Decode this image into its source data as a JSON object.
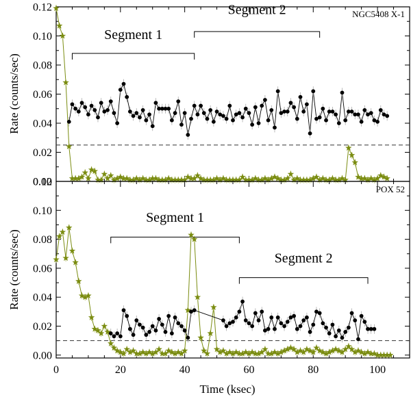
{
  "colors": {
    "background": "#ffffff",
    "axis": "#000000",
    "source": "#000000",
    "background_lc": "#7a8c10",
    "threshold": "#333333"
  },
  "chart_data": [
    {
      "type": "scatter",
      "panel_label": "NGC5408 X-1",
      "ylabel": "Rate (counts/sec)",
      "xlim": [
        0,
        110
      ],
      "ylim": [
        0,
        0.12
      ],
      "yticks": [
        0.0,
        0.02,
        0.04,
        0.06,
        0.08,
        0.1,
        0.12
      ],
      "ytick_labels": [
        "0.00",
        "0.02",
        "0.04",
        "0.06",
        "0.08",
        "0.10",
        "0.12"
      ],
      "threshold": 0.025,
      "segments": [
        {
          "label": "Segment 1",
          "x": [
            5,
            43
          ],
          "y_bracket": 0.088,
          "y_label": 0.098
        },
        {
          "label": "Segment 2",
          "x": [
            43,
            82
          ],
          "y_bracket": 0.103,
          "y_label": 0.115
        }
      ],
      "series": [
        {
          "name": "source",
          "x": [
            4,
            5,
            6,
            7,
            8,
            9,
            10,
            11,
            12,
            13,
            14,
            15,
            16,
            17,
            18,
            19,
            20,
            21,
            22,
            23,
            24,
            25,
            26,
            27,
            28,
            29,
            30,
            31,
            32,
            33,
            34,
            35,
            36,
            37,
            38,
            39,
            40,
            41,
            42,
            43,
            44,
            45,
            46,
            47,
            48,
            49,
            50,
            51,
            52,
            53,
            54,
            55,
            56,
            57,
            58,
            59,
            60,
            61,
            62,
            63,
            64,
            65,
            66,
            67,
            68,
            69,
            70,
            71,
            72,
            73,
            74,
            75,
            76,
            77,
            78,
            79,
            80,
            81,
            82,
            83,
            84,
            85,
            86,
            87,
            88,
            89,
            90,
            91,
            92,
            93,
            94,
            95,
            96,
            97,
            98,
            99,
            100,
            101,
            102,
            103
          ],
          "y": [
            0.041,
            0.053,
            0.05,
            0.048,
            0.054,
            0.051,
            0.046,
            0.052,
            0.049,
            0.044,
            0.054,
            0.048,
            0.049,
            0.055,
            0.047,
            0.04,
            0.063,
            0.067,
            0.058,
            0.048,
            0.045,
            0.047,
            0.044,
            0.049,
            0.042,
            0.046,
            0.038,
            0.054,
            0.05,
            0.05,
            0.05,
            0.05,
            0.042,
            0.047,
            0.055,
            0.039,
            0.047,
            0.032,
            0.043,
            0.052,
            0.046,
            0.052,
            0.047,
            0.043,
            0.049,
            0.041,
            0.048,
            0.046,
            0.045,
            0.043,
            0.052,
            0.042,
            0.046,
            0.047,
            0.044,
            0.05,
            0.047,
            0.039,
            0.051,
            0.04,
            0.052,
            0.056,
            0.042,
            0.049,
            0.037,
            0.062,
            0.047,
            0.048,
            0.048,
            0.054,
            0.051,
            0.043,
            0.058,
            0.048,
            0.053,
            0.033,
            0.062,
            0.043,
            0.044,
            0.05,
            0.042,
            0.048,
            0.048,
            0.046,
            0.04,
            0.061,
            0.042,
            0.048,
            0.048,
            0.046,
            0.046,
            0.041,
            0.049,
            0.046,
            0.047,
            0.042,
            0.041,
            0.049,
            0.046,
            0.045
          ]
        },
        {
          "name": "background",
          "x": [
            0,
            1,
            2,
            3,
            4,
            5,
            6,
            7,
            8,
            9,
            10,
            11,
            12,
            13,
            14,
            15,
            16,
            17,
            18,
            19,
            20,
            21,
            22,
            23,
            24,
            25,
            26,
            27,
            28,
            29,
            30,
            31,
            32,
            33,
            34,
            35,
            36,
            37,
            38,
            39,
            40,
            41,
            42,
            43,
            44,
            45,
            46,
            47,
            48,
            49,
            50,
            51,
            52,
            53,
            54,
            55,
            56,
            57,
            58,
            59,
            60,
            61,
            62,
            63,
            64,
            65,
            66,
            67,
            68,
            69,
            70,
            71,
            72,
            73,
            74,
            75,
            76,
            77,
            78,
            79,
            80,
            81,
            82,
            83,
            84,
            85,
            86,
            87,
            88,
            89,
            90,
            91,
            92,
            93,
            94,
            95,
            96,
            97,
            98,
            99,
            100,
            101,
            102,
            103
          ],
          "y": [
            0.119,
            0.107,
            0.1,
            0.068,
            0.024,
            0.002,
            0.002,
            0.002,
            0.003,
            0.006,
            0.002,
            0.008,
            0.007,
            0.001,
            0.001,
            0.005,
            0.002,
            0.004,
            0.001,
            0.002,
            0.003,
            0.002,
            0.002,
            0.001,
            0.001,
            0.002,
            0.001,
            0.002,
            0.001,
            0.001,
            0.002,
            0.002,
            0.001,
            0.001,
            0.001,
            0.002,
            0.001,
            0.001,
            0.001,
            0.001,
            0.001,
            0.003,
            0.002,
            0.002,
            0.004,
            0.002,
            0.001,
            0.001,
            0.001,
            0.001,
            0.002,
            0.001,
            0.002,
            0.001,
            0.001,
            0.001,
            0.001,
            0.001,
            0.003,
            0.001,
            0.001,
            0.001,
            0.002,
            0.001,
            0.001,
            0.002,
            0.001,
            0.002,
            0.003,
            0.002,
            0.001,
            0.001,
            0.002,
            0.005,
            0.001,
            0.002,
            0.001,
            0.001,
            0.001,
            0.001,
            0.002,
            0.003,
            0.001,
            0.002,
            0.001,
            0.001,
            0.002,
            0.001,
            0.001,
            0.002,
            0.001,
            0.023,
            0.018,
            0.013,
            0.003,
            0.002,
            0.002,
            0.001,
            0.002,
            0.001,
            0.002,
            0.004,
            0.003,
            0.002
          ]
        }
      ]
    },
    {
      "type": "scatter",
      "panel_label": "POX 52",
      "xlabel": "Time (ksec)",
      "ylabel": "Rate (counts/sec)",
      "xlim": [
        0,
        110
      ],
      "ylim": [
        -0.002,
        0.12
      ],
      "xticks": [
        0,
        20,
        40,
        60,
        80,
        100
      ],
      "xtick_labels": [
        "0",
        "20",
        "40",
        "60",
        "80",
        "100"
      ],
      "yticks": [
        0.0,
        0.02,
        0.04,
        0.06,
        0.08,
        0.1,
        0.12
      ],
      "ytick_labels": [
        "0.00",
        "0.02",
        "0.04",
        "0.06",
        "0.08",
        "0.10",
        "0.12"
      ],
      "threshold": 0.01,
      "segments": [
        {
          "label": "Segment 1",
          "x": [
            17,
            57
          ],
          "y_bracket": 0.0815,
          "y_label": 0.092
        },
        {
          "label": "Segment 2",
          "x": [
            57,
            97
          ],
          "y_bracket": 0.0535,
          "y_label": 0.064
        }
      ],
      "series": [
        {
          "name": "source",
          "x": [
            17,
            18,
            19,
            20,
            21,
            22,
            23,
            24,
            25,
            26,
            27,
            28,
            29,
            30,
            31,
            32,
            33,
            34,
            35,
            36,
            37,
            38,
            39,
            40,
            41,
            42,
            43,
            52,
            53,
            54,
            55,
            56,
            57,
            58,
            59,
            60,
            61,
            62,
            63,
            64,
            65,
            66,
            67,
            68,
            69,
            70,
            71,
            72,
            73,
            74,
            75,
            76,
            77,
            78,
            79,
            80,
            81,
            82,
            83,
            84,
            85,
            86,
            87,
            88,
            89,
            90,
            91,
            92,
            93,
            94,
            95,
            96,
            97,
            98,
            99
          ],
          "y": [
            0.015,
            0.013,
            0.015,
            0.013,
            0.031,
            0.027,
            0.018,
            0.014,
            0.024,
            0.021,
            0.019,
            0.014,
            0.016,
            0.02,
            0.017,
            0.025,
            0.021,
            0.016,
            0.027,
            0.015,
            0.026,
            0.022,
            0.02,
            0.017,
            0.012,
            0.03,
            0.031,
            0.024,
            0.02,
            0.022,
            0.023,
            0.026,
            0.03,
            0.037,
            0.024,
            0.022,
            0.02,
            0.029,
            0.024,
            0.03,
            0.017,
            0.018,
            0.026,
            0.018,
            0.026,
            0.022,
            0.02,
            0.023,
            0.026,
            0.027,
            0.018,
            0.02,
            0.024,
            0.026,
            0.016,
            0.021,
            0.03,
            0.029,
            0.022,
            0.019,
            0.015,
            0.021,
            0.013,
            0.017,
            0.012,
            0.016,
            0.019,
            0.029,
            0.024,
            0.011,
            0.027,
            0.023,
            0.018,
            0.018,
            0.018
          ]
        },
        {
          "name": "background",
          "x": [
            0,
            1,
            2,
            3,
            4,
            5,
            6,
            7,
            8,
            9,
            10,
            11,
            12,
            13,
            14,
            15,
            16,
            17,
            18,
            19,
            20,
            21,
            22,
            23,
            24,
            25,
            26,
            27,
            28,
            29,
            30,
            31,
            32,
            33,
            34,
            35,
            36,
            37,
            38,
            39,
            40,
            41,
            42,
            43,
            44,
            45,
            46,
            47,
            48,
            49,
            50,
            51,
            52,
            53,
            54,
            55,
            56,
            57,
            58,
            59,
            60,
            61,
            62,
            63,
            64,
            65,
            66,
            67,
            68,
            69,
            70,
            71,
            72,
            73,
            74,
            75,
            76,
            77,
            78,
            79,
            80,
            81,
            82,
            83,
            84,
            85,
            86,
            87,
            88,
            89,
            90,
            91,
            92,
            93,
            94,
            95,
            96,
            97,
            98,
            99,
            100,
            101,
            102,
            103,
            104
          ],
          "y": [
            0.066,
            0.082,
            0.085,
            0.067,
            0.088,
            0.072,
            0.064,
            0.051,
            0.041,
            0.04,
            0.041,
            0.026,
            0.018,
            0.017,
            0.015,
            0.02,
            0.016,
            0.008,
            0.005,
            0.003,
            0.002,
            0.001,
            0.004,
            0.002,
            0.003,
            0.001,
            0.001,
            0.002,
            0.001,
            0.002,
            0.001,
            0.002,
            0.004,
            0.001,
            0.001,
            0.003,
            0.002,
            0.001,
            0.002,
            0.001,
            0.003,
            0.031,
            0.083,
            0.08,
            0.04,
            0.012,
            0.003,
            0.001,
            0.015,
            0.033,
            0.004,
            0.002,
            0.003,
            0.001,
            0.002,
            0.001,
            0.002,
            0.001,
            0.001,
            0.002,
            0.001,
            0.002,
            0.001,
            0.001,
            0.002,
            0.004,
            0.001,
            0.001,
            0.002,
            0.001,
            0.002,
            0.003,
            0.004,
            0.005,
            0.004,
            0.002,
            0.003,
            0.002,
            0.004,
            0.003,
            0.002,
            0.005,
            0.003,
            0.002,
            0.001,
            0.002,
            0.003,
            0.004,
            0.003,
            0.002,
            0.004,
            0.006,
            0.004,
            0.002,
            0.003,
            0.002,
            0.001,
            0.002,
            0.001,
            0.001,
            0.0,
            0.0,
            0.0,
            0.0,
            0.0
          ]
        }
      ]
    }
  ]
}
